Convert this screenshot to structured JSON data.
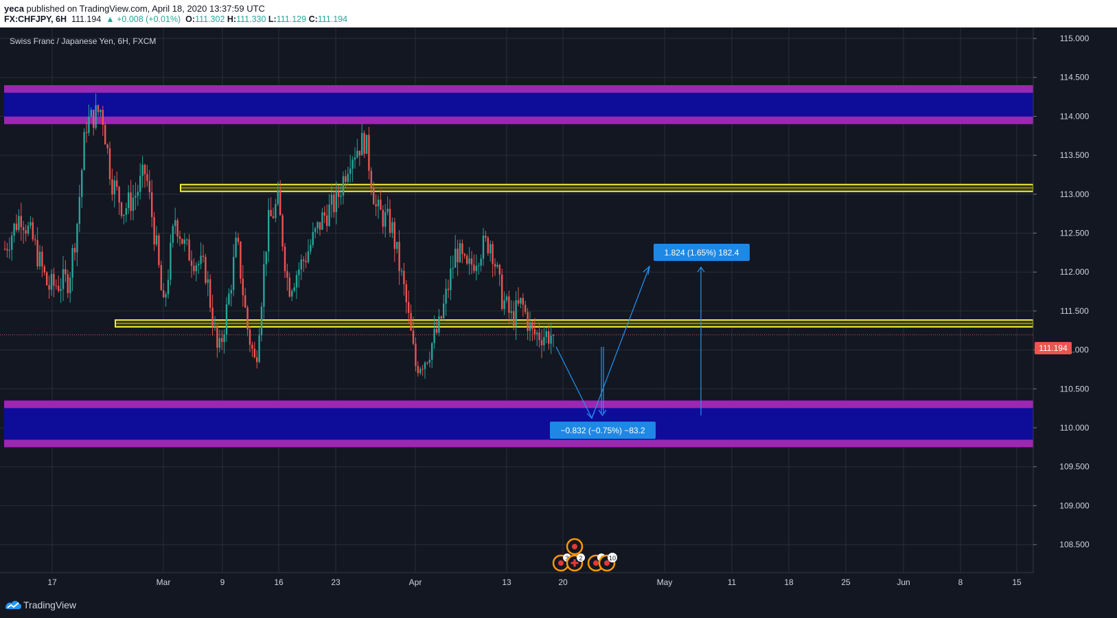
{
  "header": {
    "author": "yeca",
    "published_text": "published on TradingView.com, April 18, 2020 13:37:59 UTC",
    "symbol": "FX:CHFJPY, 6H",
    "last": "111.194",
    "change": "▲ +0.008 (+0.01%)",
    "o_label": "O:",
    "o_value": "111.302",
    "h_label": "H:",
    "h_value": "111.330",
    "l_label": "L:",
    "l_value": "111.129",
    "c_label": "C:",
    "c_value": "111.194"
  },
  "chart": {
    "legend": "Swiss Franc / Japanese Yen, 6H, FXCM",
    "price_labels": [
      "115.000",
      "114.500",
      "114.000",
      "113.500",
      "113.000",
      "112.500",
      "112.000",
      "111.500",
      "111.000",
      "110.500",
      "110.000",
      "109.500",
      "109.000",
      "108.500"
    ],
    "price_values": [
      115.0,
      114.5,
      114.0,
      113.5,
      113.0,
      112.5,
      112.0,
      111.5,
      111.0,
      110.5,
      110.0,
      109.5,
      109.0,
      108.5
    ],
    "time_labels": [
      "17",
      "Mar",
      "9",
      "16",
      "23",
      "Apr",
      "13",
      "20",
      "May",
      "11",
      "18",
      "25",
      "Jun",
      "8",
      "15"
    ],
    "current_price": "111.194",
    "range_up_label": "1.824 (1.65%) 182.4",
    "range_down_label": "−0.832 (−0.75%) −83.2",
    "event_badges": [
      "3",
      "2",
      "4",
      "10"
    ]
  },
  "zones": {
    "supply_zone": [
      113.9,
      114.4
    ],
    "demand_zone": [
      109.75,
      110.35
    ],
    "resistance_line": 113.08,
    "support_line": 111.34
  },
  "colors": {
    "background": "#131722",
    "up_candle": "#26a69a",
    "down_candle": "#ef5350",
    "zone_fill": "#0d0d9a",
    "zone_border": "#9c27b0",
    "level_line": "#f1f03a",
    "measure_blue": "#2196f3",
    "price_tag": "#ef5350"
  },
  "footer": {
    "brand": "TradingView"
  }
}
